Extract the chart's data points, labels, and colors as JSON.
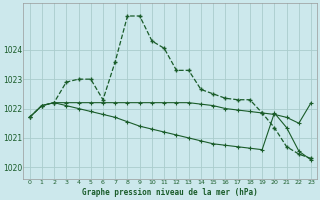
{
  "title": "Graphe pression niveau de la mer (hPa)",
  "background_color": "#cce8ec",
  "grid_color": "#aacccc",
  "line_color": "#1a5c2a",
  "xlim": [
    -0.5,
    23.5
  ],
  "ylim": [
    1019.6,
    1025.6
  ],
  "yticks": [
    1020,
    1021,
    1022,
    1023,
    1024
  ],
  "xticks": [
    0,
    1,
    2,
    3,
    4,
    5,
    6,
    7,
    8,
    9,
    10,
    11,
    12,
    13,
    14,
    15,
    16,
    17,
    18,
    19,
    20,
    21,
    22,
    23
  ],
  "line1_x": [
    0,
    1,
    2,
    3,
    4,
    5,
    6,
    7,
    8,
    9,
    10,
    11,
    12,
    13,
    14,
    15,
    16,
    17,
    18,
    19,
    20,
    21,
    22,
    23
  ],
  "line1_y": [
    1021.7,
    1022.1,
    1022.2,
    1022.9,
    1023.0,
    1023.0,
    1022.3,
    1023.6,
    1025.15,
    1025.15,
    1024.3,
    1024.05,
    1023.3,
    1023.3,
    1022.65,
    1022.5,
    1022.35,
    1022.3,
    1022.3,
    1021.85,
    1021.35,
    1020.7,
    1020.45,
    1020.3
  ],
  "line2_x": [
    0,
    1,
    2,
    3,
    4,
    5,
    6,
    7,
    8,
    9,
    10,
    11,
    12,
    13,
    14,
    15,
    16,
    17,
    18,
    19,
    20,
    21,
    22,
    23
  ],
  "line2_y": [
    1021.7,
    1022.1,
    1022.2,
    1022.2,
    1022.2,
    1022.2,
    1022.2,
    1022.2,
    1022.2,
    1022.2,
    1022.2,
    1022.2,
    1022.2,
    1022.2,
    1022.15,
    1022.1,
    1022.0,
    1021.95,
    1021.9,
    1021.85,
    1021.8,
    1021.7,
    1021.5,
    1022.2
  ],
  "line3_x": [
    0,
    1,
    2,
    3,
    4,
    5,
    6,
    7,
    8,
    9,
    10,
    11,
    12,
    13,
    14,
    15,
    16,
    17,
    18,
    19,
    20,
    21,
    22,
    23
  ],
  "line3_y": [
    1021.7,
    1022.1,
    1022.2,
    1022.1,
    1022.0,
    1021.9,
    1021.8,
    1021.7,
    1021.55,
    1021.4,
    1021.3,
    1021.2,
    1021.1,
    1021.0,
    1020.9,
    1020.8,
    1020.75,
    1020.7,
    1020.65,
    1020.6,
    1021.85,
    1021.35,
    1020.55,
    1020.25
  ]
}
